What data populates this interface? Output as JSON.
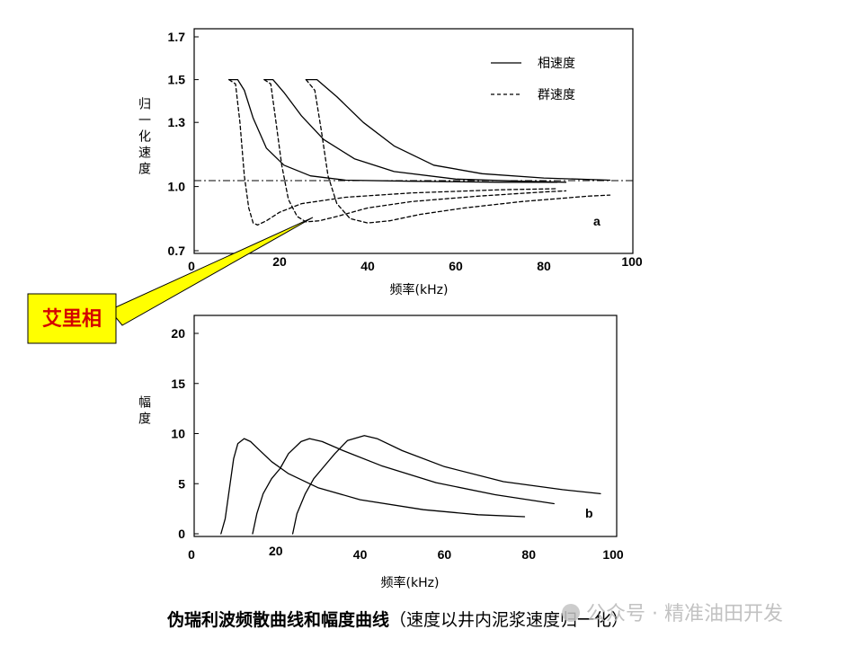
{
  "chart_data": [
    {
      "type": "line",
      "panel_label": "a",
      "ylabel": "归一化速度",
      "xlabel": "频率(kHz)",
      "xlim": [
        0,
        100
      ],
      "ylim": [
        0.7,
        1.7
      ],
      "x_ticks": [
        "0",
        "20",
        "40",
        "60",
        "80",
        "100"
      ],
      "y_ticks": [
        "0.7",
        "1.0",
        "1.3",
        "1.5",
        "1.7"
      ],
      "reference_line": 1.0,
      "legend": {
        "placement": "top-right",
        "phase": "相速度",
        "group": "群速度"
      },
      "series": [
        {
          "name": "相速度",
          "style": "solid",
          "x": [
            8.5,
            10.5,
            12,
            14,
            17,
            21,
            27,
            35,
            50,
            70,
            83
          ],
          "y": [
            1.5,
            1.5,
            1.45,
            1.32,
            1.18,
            1.1,
            1.05,
            1.03,
            1.025,
            1.02,
            1.02
          ]
        },
        {
          "name": "相速度",
          "style": "solid",
          "x": [
            16.5,
            18.5,
            21,
            25,
            30,
            37,
            46,
            60,
            75,
            85
          ],
          "y": [
            1.5,
            1.5,
            1.44,
            1.33,
            1.22,
            1.13,
            1.07,
            1.035,
            1.025,
            1.02
          ]
        },
        {
          "name": "相速度",
          "style": "solid",
          "x": [
            26,
            28.5,
            33,
            39,
            46,
            55,
            66,
            80,
            95
          ],
          "y": [
            1.5,
            1.5,
            1.42,
            1.3,
            1.19,
            1.1,
            1.06,
            1.04,
            1.03
          ]
        },
        {
          "name": "群速度",
          "style": "dashed",
          "x": [
            8.5,
            10,
            11,
            12,
            13,
            14,
            15,
            17,
            20,
            25,
            35,
            50,
            70,
            83
          ],
          "y": [
            1.5,
            1.48,
            1.3,
            1.05,
            0.9,
            0.83,
            0.82,
            0.84,
            0.88,
            0.92,
            0.95,
            0.97,
            0.985,
            0.99
          ]
        },
        {
          "name": "群速度",
          "style": "dashed",
          "x": [
            16.5,
            18,
            19,
            20.5,
            22,
            24,
            26,
            29,
            33,
            40,
            50,
            65,
            80,
            85
          ],
          "y": [
            1.5,
            1.48,
            1.33,
            1.1,
            0.94,
            0.86,
            0.835,
            0.84,
            0.86,
            0.9,
            0.93,
            0.955,
            0.975,
            0.98
          ]
        },
        {
          "name": "群速度",
          "style": "dashed",
          "x": [
            26,
            28,
            29.5,
            31,
            33,
            36,
            40,
            45,
            52,
            62,
            75,
            90,
            95
          ],
          "y": [
            1.5,
            1.45,
            1.26,
            1.05,
            0.92,
            0.85,
            0.83,
            0.84,
            0.87,
            0.9,
            0.93,
            0.955,
            0.96
          ]
        }
      ]
    },
    {
      "type": "line",
      "panel_label": "b",
      "ylabel": "幅度",
      "xlabel": "频率(kHz)",
      "xlim": [
        0,
        100
      ],
      "ylim": [
        0,
        20
      ],
      "x_ticks": [
        "0",
        "20",
        "40",
        "60",
        "80",
        "100"
      ],
      "y_ticks": [
        "0",
        "5",
        "10",
        "15",
        "20"
      ],
      "series": [
        {
          "x": [
            7,
            8,
            9,
            10,
            11,
            12.5,
            14,
            16,
            19,
            23,
            30,
            40,
            55,
            68,
            79
          ],
          "y": [
            0,
            1.5,
            4.5,
            7.5,
            9,
            9.5,
            9.2,
            8.4,
            7.2,
            6,
            4.6,
            3.4,
            2.4,
            1.9,
            1.7
          ]
        },
        {
          "x": [
            14.5,
            15.5,
            17,
            19,
            21,
            23,
            26,
            28,
            31,
            36,
            45,
            58,
            72,
            86
          ],
          "y": [
            0,
            2,
            4,
            5.5,
            6.5,
            8,
            9.2,
            9.5,
            9.2,
            8.3,
            6.8,
            5.1,
            3.9,
            3
          ]
        },
        {
          "x": [
            24,
            25,
            27,
            29,
            31,
            34,
            37,
            41,
            44,
            50,
            60,
            74,
            88,
            97
          ],
          "y": [
            0,
            2,
            4,
            5.5,
            6.5,
            8,
            9.3,
            9.8,
            9.5,
            8.3,
            6.7,
            5.2,
            4.4,
            4
          ]
        }
      ]
    }
  ],
  "callout": {
    "text": "艾里相"
  },
  "caption": {
    "main": "伪瑞利波频散曲线和幅度曲线",
    "sub": "（速度以井内泥浆速度归一化）"
  },
  "watermark": {
    "text": "公众号 · 精准油田开发"
  },
  "colors": {
    "callout_fill": "#ffff00",
    "callout_text": "#d40000",
    "line": "#000000",
    "watermark": "#b8b8b8"
  }
}
